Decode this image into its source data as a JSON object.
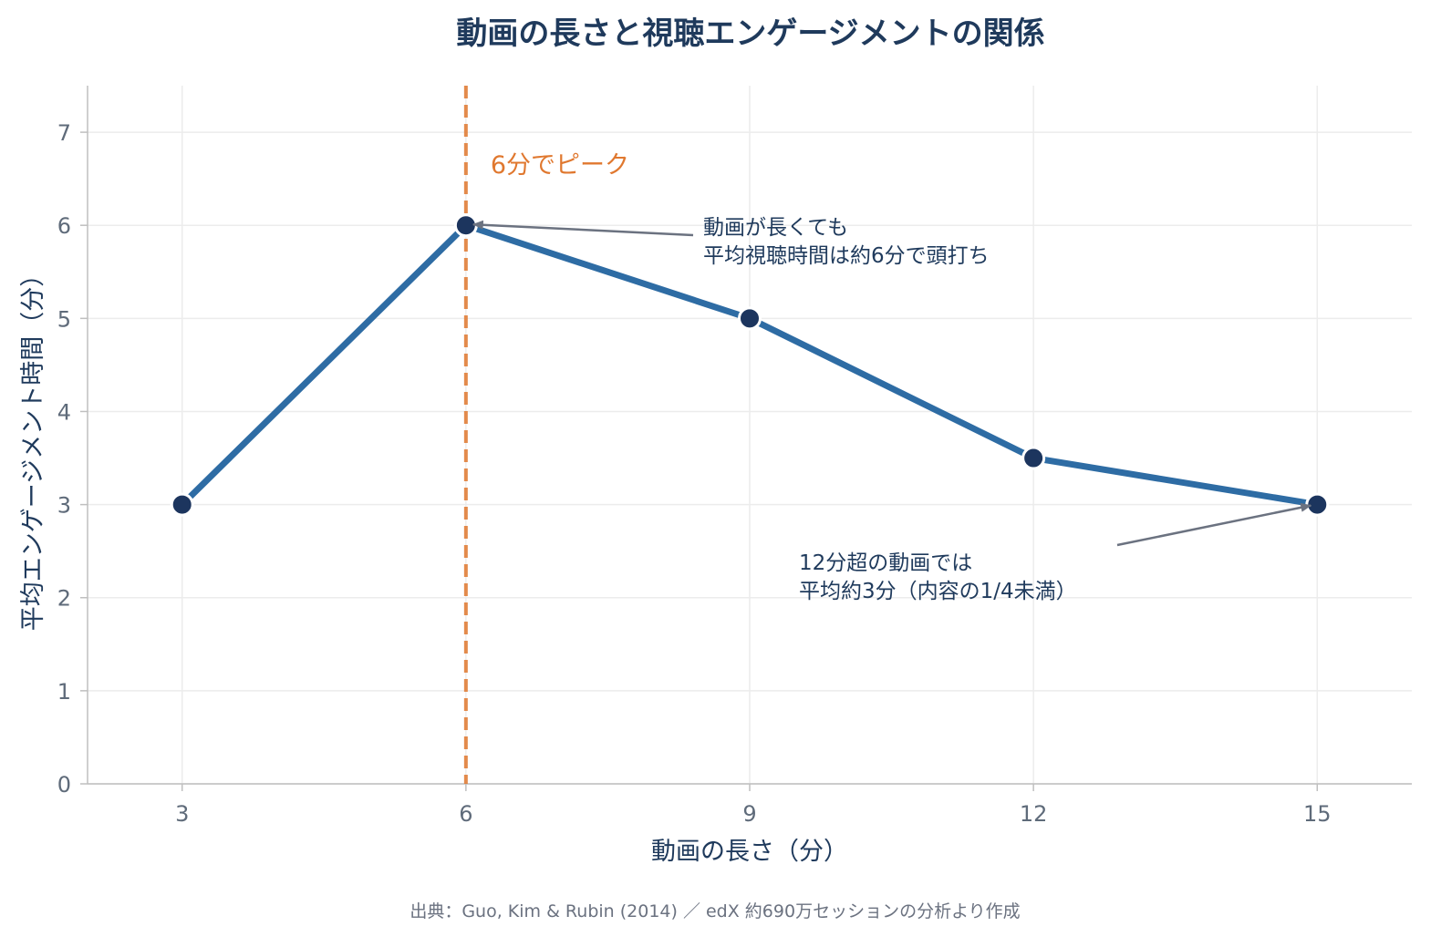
{
  "chart_data": {
    "type": "line",
    "title": "動画の長さと視聴エンゲージメントの関係",
    "xlabel": "動画の長さ（分）",
    "ylabel": "平均エンゲージメント時間（分）",
    "x": [
      3,
      6,
      9,
      12,
      15
    ],
    "series": [
      {
        "values": [
          3,
          6,
          5,
          3.5,
          3
        ]
      }
    ],
    "xlim": [
      2,
      16
    ],
    "ylim": [
      0,
      7.5
    ],
    "xticks": [
      3,
      6,
      9,
      12,
      15
    ],
    "yticks": [
      0,
      1,
      2,
      3,
      4,
      5,
      6,
      7
    ],
    "grid": true,
    "reference_line": {
      "x": 6,
      "label": "6分でピーク"
    },
    "annotations": [
      {
        "target_x": 6,
        "target_y": 6,
        "lines": [
          "動画が長くても",
          "平均視聴時間は約6分で頭打ち"
        ]
      },
      {
        "target_x": 15,
        "target_y": 3,
        "lines": [
          "12分超の動画では",
          "平均約3分（内容の1/4未満）"
        ]
      }
    ],
    "source": "出典：Guo, Kim & Rubin (2014) ／ edX 約690万セッションの分析より作成"
  },
  "colors": {
    "line": "#2e6ca4",
    "marker": "#1c355e",
    "reference": "#e0782f",
    "arrow": "#6b7280",
    "grid": "#ececec",
    "axis": "#bfbfbf"
  }
}
